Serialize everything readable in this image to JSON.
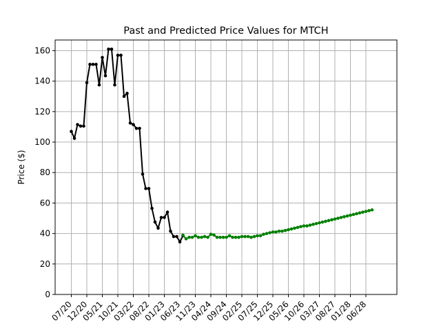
{
  "chart_data": {
    "type": "line",
    "title": "Past and Predicted Price Values for MTCH",
    "xlabel": "",
    "ylabel": "Price ($)",
    "ylim": [
      0,
      167
    ],
    "yticks": [
      0,
      20,
      40,
      60,
      80,
      100,
      120,
      140,
      160
    ],
    "xticks": [
      "07/20",
      "12/20",
      "05/21",
      "10/21",
      "03/22",
      "08/22",
      "01/23",
      "06/23",
      "11/23",
      "04/24",
      "09/24",
      "02/25",
      "07/25",
      "12/25",
      "05/26",
      "10/26",
      "03/27",
      "08/27",
      "01/28",
      "06/28"
    ],
    "grid": true,
    "legend": "none",
    "series": [
      {
        "role": "past",
        "color": "#000000",
        "values": [
          107,
          102.5,
          111.5,
          110.5,
          110.5,
          139,
          151,
          151,
          151,
          137.5,
          155.5,
          143.5,
          161,
          161,
          137.5,
          157,
          157,
          130,
          132,
          112.5,
          111.5,
          109,
          109,
          79,
          69.5,
          69.5,
          56.5,
          47.5,
          43.5,
          50.5,
          50.5,
          54,
          41.5,
          38,
          38,
          34.5,
          38.5
        ]
      },
      {
        "role": "predicted",
        "color": "#008000",
        "values": [
          39,
          36.5,
          37.5,
          37.5,
          38.5,
          37.5,
          37.5,
          38,
          37.5,
          39.5,
          39,
          37.5,
          37.5,
          37.5,
          37.5,
          38.5,
          37.5,
          37.5,
          37.5,
          38,
          38,
          38,
          37.5,
          38,
          38.5,
          38.5,
          39.5,
          40,
          40.5,
          41,
          41,
          41.5,
          41.5,
          42,
          42.5,
          43,
          43.5,
          44,
          44.5,
          45,
          45,
          45.5,
          46,
          46.5,
          47,
          47.5,
          48,
          48.5,
          49,
          49.5,
          50,
          50.5,
          51,
          51.5,
          52,
          52.5,
          53,
          53.5,
          54,
          54.5,
          55,
          55.5
        ]
      }
    ]
  }
}
